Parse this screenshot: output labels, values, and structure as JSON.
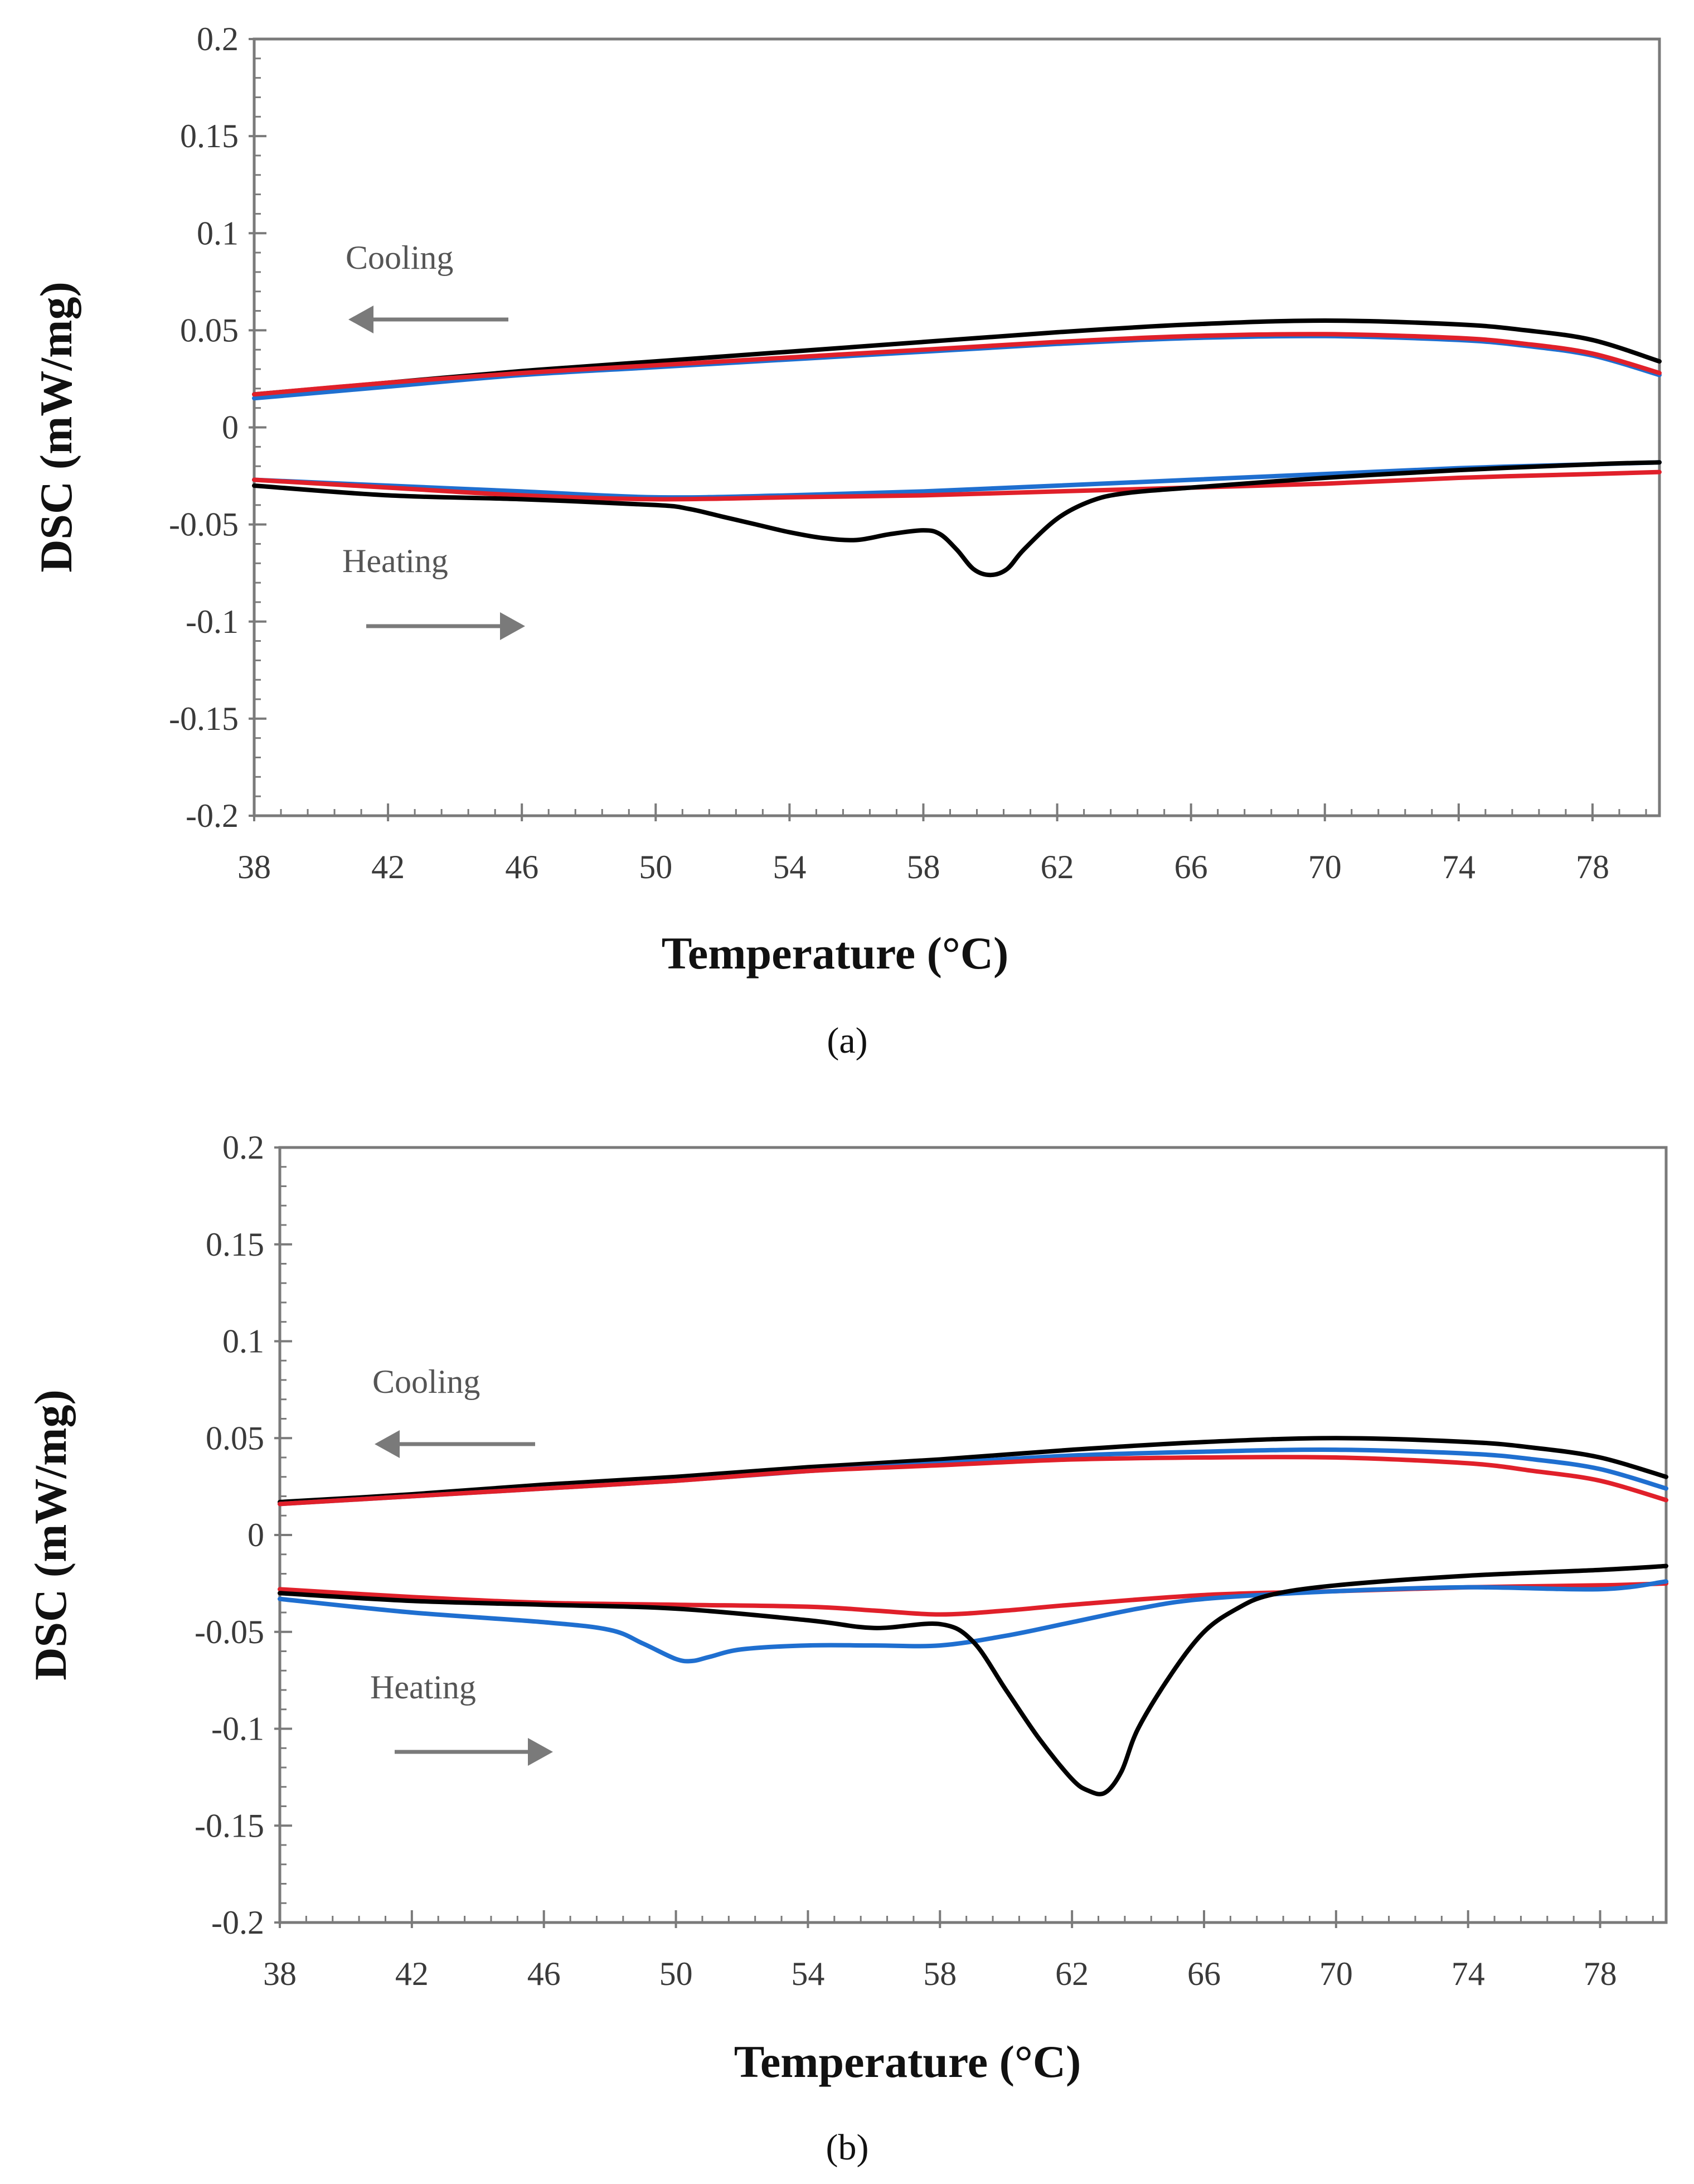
{
  "chart_data": [
    {
      "type": "line",
      "panel_label": "(a)",
      "xlabel": "Temperature (°C)",
      "ylabel": "DSC (mW/mg)",
      "xlim": [
        38,
        80
      ],
      "ylim": [
        -0.2,
        0.2
      ],
      "x_ticks": [
        38,
        42,
        46,
        50,
        54,
        58,
        62,
        66,
        70,
        74,
        78
      ],
      "y_ticks": [
        -0.2,
        -0.15,
        -0.1,
        -0.05,
        0,
        0.05,
        0.1,
        0.15,
        0.2
      ],
      "x_tick_labels": [
        "38",
        "42",
        "46",
        "50",
        "54",
        "58",
        "62",
        "66",
        "70",
        "74",
        "78"
      ],
      "y_tick_labels": [
        "-0.2",
        "-0.15",
        "-0.1",
        "-0.05",
        "0",
        "0.05",
        "0.1",
        "0.15",
        "0.2"
      ],
      "grid": false,
      "annotations": [
        {
          "text": "Cooling",
          "arrow": "left"
        },
        {
          "text": "Heating",
          "arrow": "right"
        }
      ],
      "series": [
        {
          "name": "black-cooling",
          "color": "#000000",
          "x": [
            38,
            42,
            46,
            50,
            54,
            58,
            62,
            66,
            70,
            74,
            76,
            78,
            80
          ],
          "values": [
            0.017,
            0.023,
            0.029,
            0.034,
            0.039,
            0.044,
            0.049,
            0.053,
            0.055,
            0.053,
            0.05,
            0.045,
            0.034
          ]
        },
        {
          "name": "blue-cooling",
          "color": "#1f6fd0",
          "x": [
            38,
            42,
            46,
            50,
            54,
            58,
            62,
            66,
            70,
            74,
            76,
            78,
            80
          ],
          "values": [
            0.015,
            0.021,
            0.027,
            0.031,
            0.035,
            0.039,
            0.043,
            0.046,
            0.047,
            0.045,
            0.042,
            0.037,
            0.027
          ]
        },
        {
          "name": "red-cooling",
          "color": "#e0202a",
          "x": [
            38,
            42,
            46,
            50,
            54,
            58,
            62,
            66,
            70,
            74,
            76,
            78,
            80
          ],
          "values": [
            0.017,
            0.023,
            0.028,
            0.032,
            0.036,
            0.04,
            0.044,
            0.047,
            0.048,
            0.046,
            0.043,
            0.038,
            0.028
          ]
        },
        {
          "name": "blue-heating",
          "color": "#1f6fd0",
          "x": [
            38,
            42,
            46,
            50,
            54,
            58,
            62,
            66,
            70,
            74,
            78,
            80
          ],
          "values": [
            -0.027,
            -0.03,
            -0.033,
            -0.036,
            -0.035,
            -0.033,
            -0.03,
            -0.027,
            -0.024,
            -0.021,
            -0.019,
            -0.018
          ]
        },
        {
          "name": "red-heating",
          "color": "#e0202a",
          "x": [
            38,
            42,
            46,
            50,
            54,
            58,
            62,
            66,
            70,
            74,
            78,
            80
          ],
          "values": [
            -0.027,
            -0.031,
            -0.035,
            -0.037,
            -0.036,
            -0.035,
            -0.033,
            -0.031,
            -0.029,
            -0.026,
            -0.024,
            -0.023
          ]
        },
        {
          "name": "black-heating",
          "color": "#000000",
          "x": [
            38,
            42,
            46,
            50,
            51,
            52,
            53,
            54,
            55,
            56,
            57,
            58,
            58.5,
            59,
            59.5,
            60,
            60.5,
            61,
            62,
            63,
            64,
            66,
            70,
            74,
            78,
            80
          ],
          "values": [
            -0.03,
            -0.035,
            -0.037,
            -0.04,
            -0.042,
            -0.046,
            -0.05,
            -0.054,
            -0.057,
            -0.058,
            -0.055,
            -0.053,
            -0.055,
            -0.063,
            -0.073,
            -0.076,
            -0.073,
            -0.063,
            -0.047,
            -0.038,
            -0.034,
            -0.031,
            -0.026,
            -0.022,
            -0.019,
            -0.018
          ]
        }
      ]
    },
    {
      "type": "line",
      "panel_label": "(b)",
      "xlabel": "Temperature (°C)",
      "ylabel": "DSC (mW/mg)",
      "xlim": [
        38,
        80
      ],
      "ylim": [
        -0.2,
        0.2
      ],
      "x_ticks": [
        38,
        42,
        46,
        50,
        54,
        58,
        62,
        66,
        70,
        74,
        78
      ],
      "y_ticks": [
        -0.2,
        -0.15,
        -0.1,
        -0.05,
        0,
        0.05,
        0.1,
        0.15,
        0.2
      ],
      "x_tick_labels": [
        "38",
        "42",
        "46",
        "50",
        "54",
        "58",
        "62",
        "66",
        "70",
        "74",
        "78"
      ],
      "y_tick_labels": [
        "-0.2",
        "-0.15",
        "-0.1",
        "-0.05",
        "0",
        "0.05",
        "0.1",
        "0.15",
        "0.2"
      ],
      "grid": false,
      "annotations": [
        {
          "text": "Cooling",
          "arrow": "left"
        },
        {
          "text": "Heating",
          "arrow": "right"
        }
      ],
      "series": [
        {
          "name": "black-cooling",
          "color": "#000000",
          "x": [
            38,
            42,
            46,
            50,
            54,
            58,
            62,
            66,
            70,
            74,
            76,
            78,
            80
          ],
          "values": [
            0.017,
            0.021,
            0.026,
            0.03,
            0.035,
            0.039,
            0.044,
            0.048,
            0.05,
            0.048,
            0.045,
            0.04,
            0.03
          ]
        },
        {
          "name": "blue-cooling",
          "color": "#1f6fd0",
          "x": [
            38,
            42,
            46,
            50,
            54,
            58,
            62,
            66,
            70,
            74,
            76,
            78,
            80
          ],
          "values": [
            0.016,
            0.02,
            0.024,
            0.028,
            0.033,
            0.037,
            0.041,
            0.043,
            0.044,
            0.042,
            0.039,
            0.034,
            0.024
          ]
        },
        {
          "name": "red-cooling",
          "color": "#e0202a",
          "x": [
            38,
            42,
            46,
            50,
            54,
            58,
            62,
            66,
            70,
            74,
            76,
            78,
            80
          ],
          "values": [
            0.016,
            0.02,
            0.024,
            0.028,
            0.033,
            0.036,
            0.039,
            0.04,
            0.04,
            0.037,
            0.033,
            0.028,
            0.018
          ]
        },
        {
          "name": "red-heating",
          "color": "#e0202a",
          "x": [
            38,
            42,
            46,
            50,
            54,
            56,
            58,
            60,
            62,
            66,
            70,
            74,
            78,
            80
          ],
          "values": [
            -0.028,
            -0.032,
            -0.035,
            -0.036,
            -0.037,
            -0.039,
            -0.041,
            -0.039,
            -0.036,
            -0.031,
            -0.029,
            -0.027,
            -0.026,
            -0.025
          ]
        },
        {
          "name": "blue-heating",
          "color": "#1f6fd0",
          "x": [
            38,
            42,
            46,
            48,
            49,
            50,
            50.5,
            51,
            52,
            54,
            56,
            58,
            60,
            62,
            64,
            66,
            70,
            74,
            78,
            80
          ],
          "values": [
            -0.033,
            -0.04,
            -0.045,
            -0.049,
            -0.056,
            -0.064,
            -0.065,
            -0.063,
            -0.059,
            -0.057,
            -0.057,
            -0.057,
            -0.052,
            -0.045,
            -0.038,
            -0.033,
            -0.029,
            -0.027,
            -0.028,
            -0.024
          ]
        },
        {
          "name": "black-heating",
          "color": "#000000",
          "x": [
            38,
            42,
            46,
            50,
            54,
            56,
            58,
            59,
            60,
            61,
            62,
            62.5,
            63,
            63.5,
            64,
            65,
            66,
            67,
            68,
            70,
            74,
            78,
            80
          ],
          "values": [
            -0.03,
            -0.034,
            -0.036,
            -0.038,
            -0.044,
            -0.048,
            -0.046,
            -0.055,
            -0.08,
            -0.105,
            -0.126,
            -0.132,
            -0.133,
            -0.122,
            -0.1,
            -0.072,
            -0.05,
            -0.038,
            -0.031,
            -0.026,
            -0.021,
            -0.018,
            -0.016
          ]
        }
      ]
    }
  ]
}
